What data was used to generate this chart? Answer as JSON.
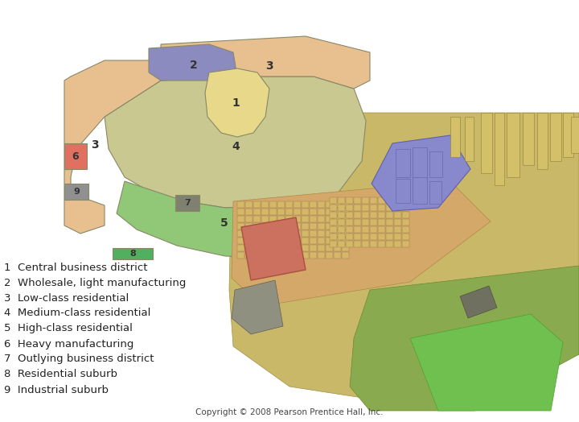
{
  "copyright": "Copyright © 2008 Pearson Prentice Hall, Inc.",
  "legend": [
    {
      "num": "1",
      "label": "Central business district"
    },
    {
      "num": "2",
      "label": "Wholesale, light manufacturing"
    },
    {
      "num": "3",
      "label": "Low-class residential"
    },
    {
      "num": "4",
      "label": "Medium-class residential"
    },
    {
      "num": "5",
      "label": "High-class residential"
    },
    {
      "num": "6",
      "label": "Heavy manufacturing"
    },
    {
      "num": "7",
      "label": "Outlying business district"
    },
    {
      "num": "8",
      "label": "Residential suburb"
    },
    {
      "num": "9",
      "label": "Industrial suburb"
    }
  ],
  "zone_colors": {
    "1": "#e8d98a",
    "2": "#8b8bbf",
    "3": "#e8c090",
    "4": "#c8c890",
    "5": "#90c878",
    "6": "#e07060",
    "7": "#808070",
    "8": "#50b060",
    "9": "#909090"
  },
  "bg_color": "#ffffff"
}
